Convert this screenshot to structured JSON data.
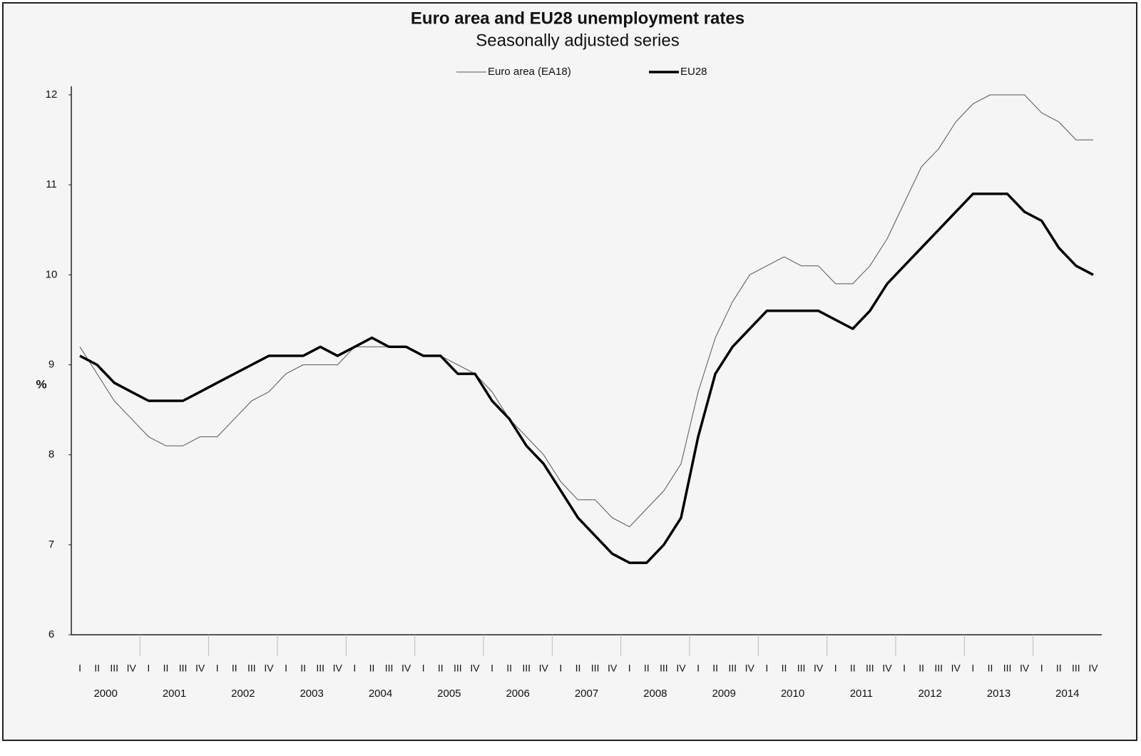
{
  "chart_data": {
    "type": "line",
    "title": "Euro area and EU28 unemployment rates",
    "subtitle": "Seasonally adjusted series",
    "y_label": "%",
    "categories": [
      "I",
      "II",
      "III",
      "IV",
      "I",
      "II",
      "III",
      "IV",
      "I",
      "II",
      "III",
      "IV",
      "I",
      "II",
      "III",
      "IV",
      "I",
      "II",
      "III",
      "IV",
      "I",
      "II",
      "III",
      "IV",
      "I",
      "II",
      "III",
      "IV",
      "I",
      "II",
      "III",
      "IV",
      "I",
      "II",
      "III",
      "IV",
      "I",
      "II",
      "III",
      "IV",
      "I",
      "II",
      "III",
      "IV",
      "I",
      "II",
      "III",
      "IV",
      "I",
      "II",
      "III",
      "IV",
      "I",
      "II",
      "III",
      "IV",
      "I",
      "II",
      "III",
      "IV"
    ],
    "years": [
      "2000",
      "2001",
      "2002",
      "2003",
      "2004",
      "2005",
      "2006",
      "2007",
      "2008",
      "2009",
      "2010",
      "2011",
      "2012",
      "2013",
      "2014"
    ],
    "series": [
      {
        "name": "Euro area (EA18)",
        "color": "#555555",
        "width": 1,
        "values": [
          9.2,
          8.9,
          8.6,
          8.4,
          8.2,
          8.1,
          8.1,
          8.2,
          8.2,
          8.4,
          8.6,
          8.7,
          8.9,
          9.0,
          9.0,
          9.0,
          9.2,
          9.2,
          9.2,
          9.2,
          9.1,
          9.1,
          9.0,
          8.9,
          8.7,
          8.4,
          8.2,
          8.0,
          7.7,
          7.5,
          7.5,
          7.3,
          7.2,
          7.4,
          7.6,
          7.9,
          8.7,
          9.3,
          9.7,
          10.0,
          10.1,
          10.2,
          10.1,
          10.1,
          9.9,
          9.9,
          10.1,
          10.4,
          10.8,
          11.2,
          11.4,
          11.7,
          11.9,
          12.0,
          12.0,
          12.0,
          11.8,
          11.7,
          11.5,
          11.5
        ]
      },
      {
        "name": "EU28",
        "color": "#000000",
        "width": 3.5,
        "values": [
          9.1,
          9.0,
          8.8,
          8.7,
          8.6,
          8.6,
          8.6,
          8.7,
          8.8,
          8.9,
          9.0,
          9.1,
          9.1,
          9.1,
          9.2,
          9.1,
          9.2,
          9.3,
          9.2,
          9.2,
          9.1,
          9.1,
          8.9,
          8.9,
          8.6,
          8.4,
          8.1,
          7.9,
          7.6,
          7.3,
          7.1,
          6.9,
          6.8,
          6.8,
          7.0,
          7.3,
          8.2,
          8.9,
          9.2,
          9.4,
          9.6,
          9.6,
          9.6,
          9.6,
          9.5,
          9.4,
          9.6,
          9.9,
          10.1,
          10.3,
          10.5,
          10.7,
          10.9,
          10.9,
          10.9,
          10.7,
          10.6,
          10.3,
          10.1,
          10.0
        ]
      }
    ],
    "ylim": [
      6,
      12
    ],
    "yticks": [
      6,
      7,
      8,
      9,
      10,
      11,
      12
    ],
    "grid": false,
    "legend": "top"
  }
}
